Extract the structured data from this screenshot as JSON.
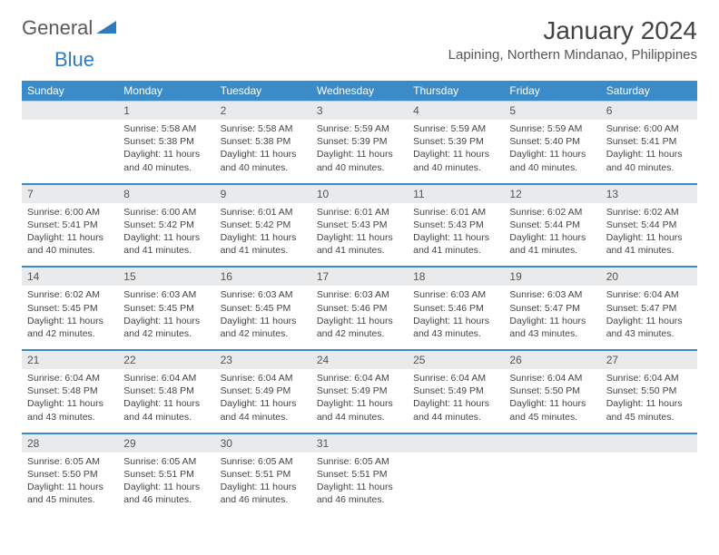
{
  "logo": {
    "word1": "General",
    "word2": "Blue"
  },
  "title": "January 2024",
  "location": "Lapining, Northern Mindanao, Philippines",
  "colors": {
    "header_bg": "#3b8bc9",
    "header_text": "#ffffff",
    "daynum_bg": "#e8eaec",
    "daynum_text": "#555555",
    "body_text": "#444444",
    "week_divider": "#3b8bc9",
    "logo_gray": "#5a5a5a",
    "logo_blue": "#2e7cc0"
  },
  "day_labels": [
    "Sunday",
    "Monday",
    "Tuesday",
    "Wednesday",
    "Thursday",
    "Friday",
    "Saturday"
  ],
  "weeks": [
    {
      "nums": [
        "",
        "1",
        "2",
        "3",
        "4",
        "5",
        "6"
      ],
      "cells": [
        [],
        [
          "Sunrise: 5:58 AM",
          "Sunset: 5:38 PM",
          "Daylight: 11 hours",
          "and 40 minutes."
        ],
        [
          "Sunrise: 5:58 AM",
          "Sunset: 5:38 PM",
          "Daylight: 11 hours",
          "and 40 minutes."
        ],
        [
          "Sunrise: 5:59 AM",
          "Sunset: 5:39 PM",
          "Daylight: 11 hours",
          "and 40 minutes."
        ],
        [
          "Sunrise: 5:59 AM",
          "Sunset: 5:39 PM",
          "Daylight: 11 hours",
          "and 40 minutes."
        ],
        [
          "Sunrise: 5:59 AM",
          "Sunset: 5:40 PM",
          "Daylight: 11 hours",
          "and 40 minutes."
        ],
        [
          "Sunrise: 6:00 AM",
          "Sunset: 5:41 PM",
          "Daylight: 11 hours",
          "and 40 minutes."
        ]
      ]
    },
    {
      "nums": [
        "7",
        "8",
        "9",
        "10",
        "11",
        "12",
        "13"
      ],
      "cells": [
        [
          "Sunrise: 6:00 AM",
          "Sunset: 5:41 PM",
          "Daylight: 11 hours",
          "and 40 minutes."
        ],
        [
          "Sunrise: 6:00 AM",
          "Sunset: 5:42 PM",
          "Daylight: 11 hours",
          "and 41 minutes."
        ],
        [
          "Sunrise: 6:01 AM",
          "Sunset: 5:42 PM",
          "Daylight: 11 hours",
          "and 41 minutes."
        ],
        [
          "Sunrise: 6:01 AM",
          "Sunset: 5:43 PM",
          "Daylight: 11 hours",
          "and 41 minutes."
        ],
        [
          "Sunrise: 6:01 AM",
          "Sunset: 5:43 PM",
          "Daylight: 11 hours",
          "and 41 minutes."
        ],
        [
          "Sunrise: 6:02 AM",
          "Sunset: 5:44 PM",
          "Daylight: 11 hours",
          "and 41 minutes."
        ],
        [
          "Sunrise: 6:02 AM",
          "Sunset: 5:44 PM",
          "Daylight: 11 hours",
          "and 41 minutes."
        ]
      ]
    },
    {
      "nums": [
        "14",
        "15",
        "16",
        "17",
        "18",
        "19",
        "20"
      ],
      "cells": [
        [
          "Sunrise: 6:02 AM",
          "Sunset: 5:45 PM",
          "Daylight: 11 hours",
          "and 42 minutes."
        ],
        [
          "Sunrise: 6:03 AM",
          "Sunset: 5:45 PM",
          "Daylight: 11 hours",
          "and 42 minutes."
        ],
        [
          "Sunrise: 6:03 AM",
          "Sunset: 5:45 PM",
          "Daylight: 11 hours",
          "and 42 minutes."
        ],
        [
          "Sunrise: 6:03 AM",
          "Sunset: 5:46 PM",
          "Daylight: 11 hours",
          "and 42 minutes."
        ],
        [
          "Sunrise: 6:03 AM",
          "Sunset: 5:46 PM",
          "Daylight: 11 hours",
          "and 43 minutes."
        ],
        [
          "Sunrise: 6:03 AM",
          "Sunset: 5:47 PM",
          "Daylight: 11 hours",
          "and 43 minutes."
        ],
        [
          "Sunrise: 6:04 AM",
          "Sunset: 5:47 PM",
          "Daylight: 11 hours",
          "and 43 minutes."
        ]
      ]
    },
    {
      "nums": [
        "21",
        "22",
        "23",
        "24",
        "25",
        "26",
        "27"
      ],
      "cells": [
        [
          "Sunrise: 6:04 AM",
          "Sunset: 5:48 PM",
          "Daylight: 11 hours",
          "and 43 minutes."
        ],
        [
          "Sunrise: 6:04 AM",
          "Sunset: 5:48 PM",
          "Daylight: 11 hours",
          "and 44 minutes."
        ],
        [
          "Sunrise: 6:04 AM",
          "Sunset: 5:49 PM",
          "Daylight: 11 hours",
          "and 44 minutes."
        ],
        [
          "Sunrise: 6:04 AM",
          "Sunset: 5:49 PM",
          "Daylight: 11 hours",
          "and 44 minutes."
        ],
        [
          "Sunrise: 6:04 AM",
          "Sunset: 5:49 PM",
          "Daylight: 11 hours",
          "and 44 minutes."
        ],
        [
          "Sunrise: 6:04 AM",
          "Sunset: 5:50 PM",
          "Daylight: 11 hours",
          "and 45 minutes."
        ],
        [
          "Sunrise: 6:04 AM",
          "Sunset: 5:50 PM",
          "Daylight: 11 hours",
          "and 45 minutes."
        ]
      ]
    },
    {
      "nums": [
        "28",
        "29",
        "30",
        "31",
        "",
        "",
        ""
      ],
      "cells": [
        [
          "Sunrise: 6:05 AM",
          "Sunset: 5:50 PM",
          "Daylight: 11 hours",
          "and 45 minutes."
        ],
        [
          "Sunrise: 6:05 AM",
          "Sunset: 5:51 PM",
          "Daylight: 11 hours",
          "and 46 minutes."
        ],
        [
          "Sunrise: 6:05 AM",
          "Sunset: 5:51 PM",
          "Daylight: 11 hours",
          "and 46 minutes."
        ],
        [
          "Sunrise: 6:05 AM",
          "Sunset: 5:51 PM",
          "Daylight: 11 hours",
          "and 46 minutes."
        ],
        [],
        [],
        []
      ]
    }
  ]
}
